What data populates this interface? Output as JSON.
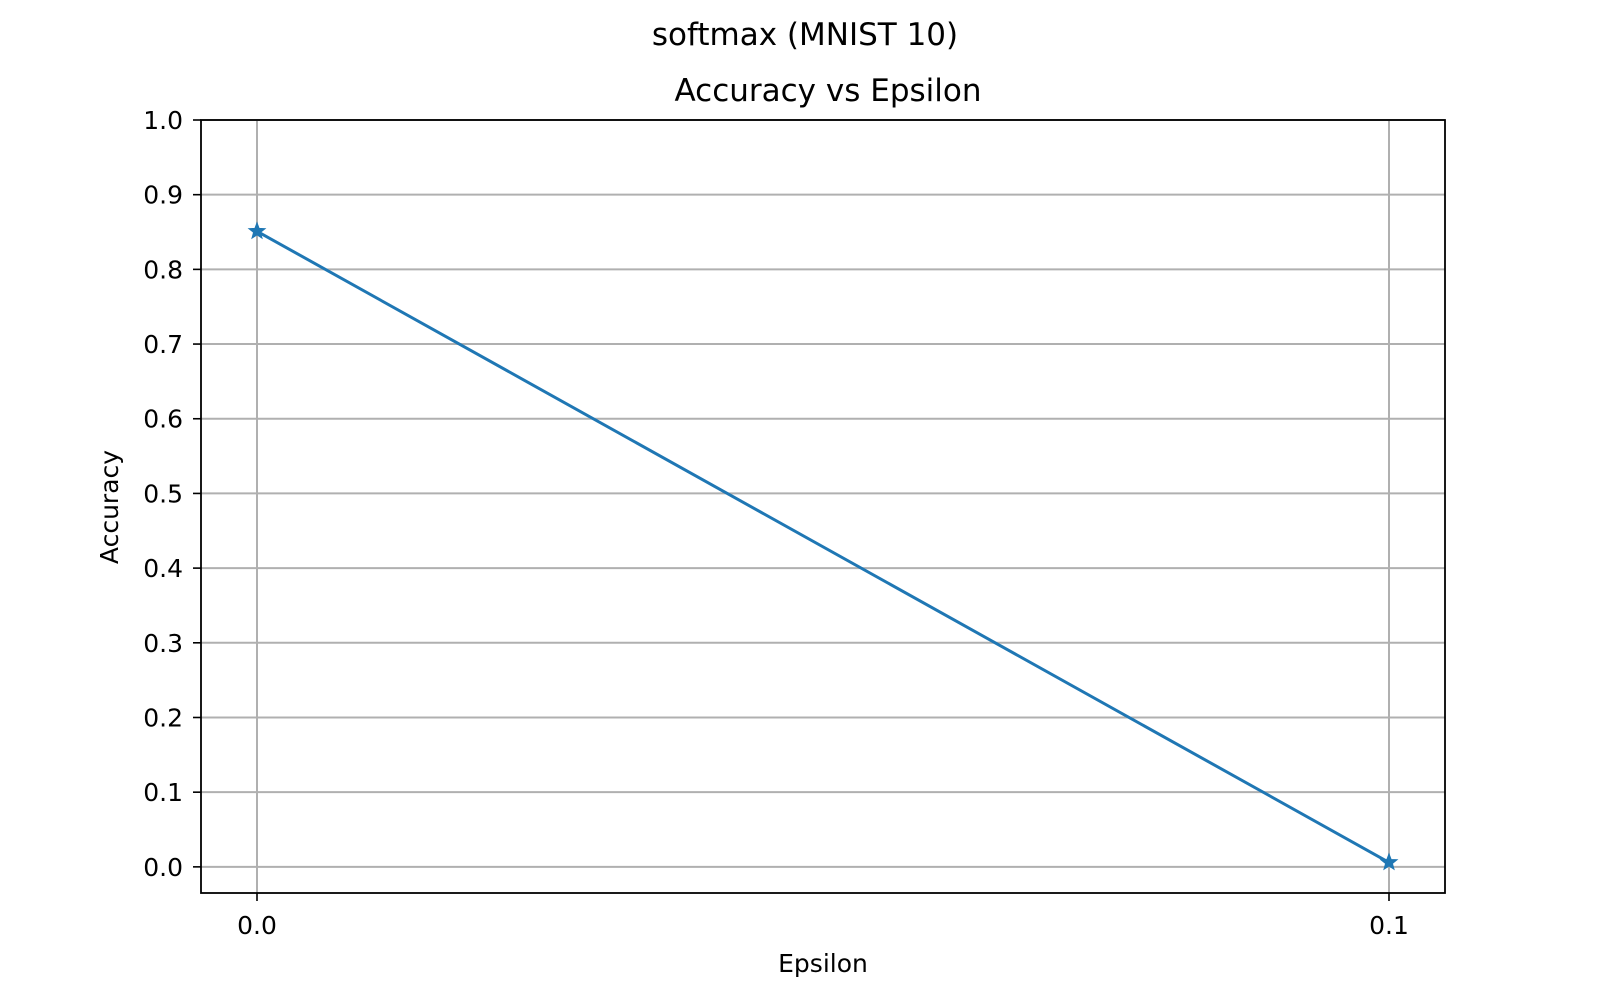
{
  "figure": {
    "suptitle": "softmax (MNIST 10)"
  },
  "chart_data": {
    "type": "line",
    "title": "Accuracy vs Epsilon",
    "xlabel": "Epsilon",
    "ylabel": "Accuracy",
    "x": [
      0.0,
      0.1
    ],
    "xticks": [
      "0.0",
      "0.1"
    ],
    "ylim": [
      -0.035,
      1.0
    ],
    "yticks": [
      "0.0",
      "0.1",
      "0.2",
      "0.3",
      "0.4",
      "0.5",
      "0.6",
      "0.7",
      "0.8",
      "0.9",
      "1.0"
    ],
    "grid": true,
    "marker": "star",
    "series": [
      {
        "values": [
          0.851,
          0.006
        ],
        "color": "#1f77b4"
      }
    ]
  }
}
